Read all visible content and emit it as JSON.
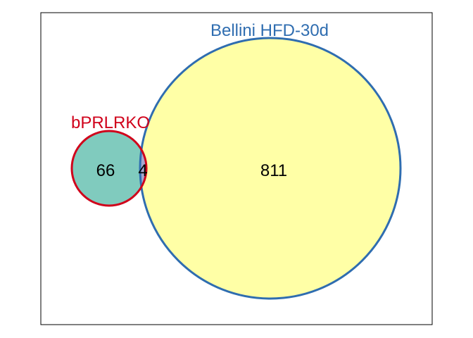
{
  "sets": [
    {
      "name": "bPRLRKO",
      "label_color": "#D0021B",
      "stroke_color": "#D0021B",
      "fill_color": "#80CBBE"
    },
    {
      "name": "Bellini HFD-30d",
      "label_color": "#2F6DB0",
      "stroke_color": "#2F6DB0",
      "fill_color": "#FFFFA6"
    }
  ],
  "regions": {
    "only_a": "66",
    "a_and_b": "4",
    "only_b": "811"
  },
  "overlap_fill_color": "#A7A7CF",
  "frame_color": "#000000"
}
